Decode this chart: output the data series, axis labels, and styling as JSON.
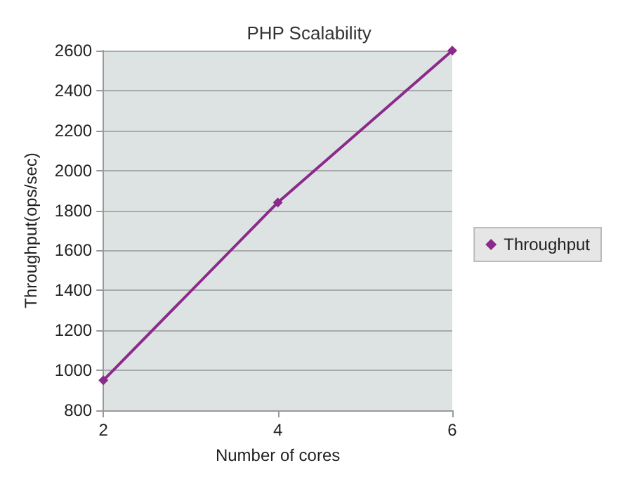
{
  "chart_data": {
    "type": "line",
    "title": "PHP Scalability",
    "xlabel": "Number of cores",
    "ylabel": "Throughput(ops/sec)",
    "x": [
      2,
      4,
      6
    ],
    "series": [
      {
        "name": "Throughput",
        "color": "#8b2a8b",
        "values": [
          950,
          1840,
          2600
        ]
      }
    ],
    "xlim": [
      2,
      6
    ],
    "xticks": [
      2,
      4,
      6
    ],
    "ylim": [
      800,
      2600
    ],
    "yticks": [
      800,
      1000,
      1200,
      1400,
      1600,
      1800,
      2000,
      2200,
      2400,
      2600
    ],
    "grid": "y",
    "legend": "right",
    "marker": "diamond",
    "line_style": "solid"
  }
}
